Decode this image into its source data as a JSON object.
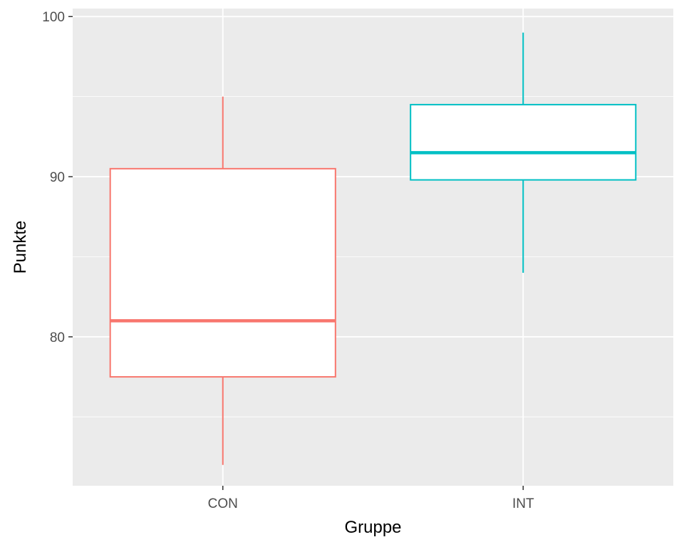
{
  "chart_data": {
    "type": "boxplot",
    "xlabel": "Gruppe",
    "ylabel": "Punkte",
    "ylim": [
      70.7,
      100.5
    ],
    "y_ticks": [
      {
        "value": 80,
        "label": "80"
      },
      {
        "value": 90,
        "label": "90"
      },
      {
        "value": 100,
        "label": "100"
      }
    ],
    "y_minor_ticks": [
      75,
      85,
      95
    ],
    "grid": true,
    "categories": [
      "CON",
      "INT"
    ],
    "series": [
      {
        "category": "CON",
        "min": 72,
        "q1": 77.5,
        "median": 81,
        "q3": 90.5,
        "max": 95,
        "color": "#F8766D"
      },
      {
        "category": "INT",
        "min": 84,
        "q1": 89.8,
        "median": 91.5,
        "q3": 94.5,
        "max": 99,
        "color": "#00BFC4"
      }
    ],
    "colors": {
      "panel": "#EBEBEB",
      "grid": "#FFFFFF",
      "tick_text": "#4D4D4D"
    }
  }
}
